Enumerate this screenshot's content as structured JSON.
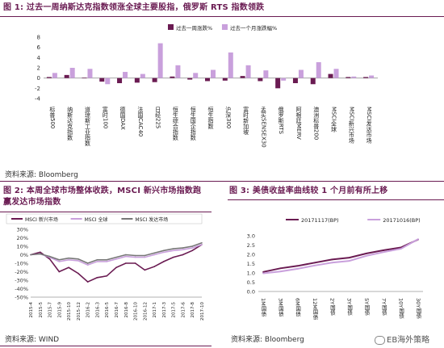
{
  "fig1": {
    "title": "图 1: 过去一周纳斯达克指数领涨全球主要股指，俄罗斯 RTS 指数领跌",
    "source": "资料来源: Bloomberg",
    "chart_data": {
      "type": "bar",
      "legend_position": "top",
      "categories": [
        "标普500",
        "纳斯达克指数",
        "道琼斯工业指数",
        "富时100",
        "德国DAX",
        "法国CAC40",
        "日经225",
        "恒生综合指数",
        "恒生国企指数",
        "恒生指数",
        "沪深300",
        "富时新加坡",
        "孟买SENSEX30",
        "俄罗斯RTS",
        "阿根廷MERV",
        "澳洲标普200",
        "MSCI全球",
        "MSCI新兴市场",
        "MSCI发达市场"
      ],
      "series": [
        {
          "name": "过去一周涨跌%",
          "color": "#6a1b52",
          "values": [
            0.2,
            0.6,
            0.1,
            -0.7,
            -1.0,
            -0.9,
            -0.8,
            0.3,
            -0.3,
            -0.6,
            -0.5,
            0.4,
            -0.6,
            -2.0,
            -1.0,
            -1.2,
            0.8,
            0.2,
            0.2
          ]
        },
        {
          "name": "过去一个月涨跌幅%",
          "color": "#c9a0dc",
          "values": [
            1.0,
            2.0,
            1.8,
            -1.2,
            1.2,
            0.8,
            6.8,
            2.5,
            1.0,
            1.6,
            5.0,
            2.5,
            1.5,
            -0.5,
            1.6,
            3.1,
            1.8,
            0.3,
            0.5
          ]
        }
      ],
      "ylim": [
        -4,
        8
      ],
      "yticks": [
        -4,
        -2,
        0,
        2,
        4,
        6,
        8
      ]
    }
  },
  "fig2": {
    "title_line1": "图 2: 本周全球市场整体收跌，MSCI 新兴市场指数跑",
    "title_line2": "赢发达市场指数",
    "source": "资料来源: WIND",
    "chart_data": {
      "type": "line",
      "legend_position": "top",
      "x": [
        "2015-4",
        "2015-5",
        "2015-7",
        "2015-9",
        "2015-10",
        "2015-12",
        "2016-2",
        "2016-3",
        "2016-5",
        "2016-7",
        "2016-8",
        "2016-10",
        "2016-12",
        "2017-1",
        "2017-3",
        "2017-5",
        "2017-6",
        "2017-8",
        "2017-10"
      ],
      "series": [
        {
          "name": "MSCI 新兴市场",
          "color": "#6a1b52",
          "values": [
            0,
            3,
            -5,
            -20,
            -15,
            -22,
            -32,
            -27,
            -25,
            -15,
            -10,
            -10,
            -18,
            -14,
            -8,
            -3,
            0,
            5,
            12
          ]
        },
        {
          "name": "MSCI 全球",
          "color": "#c9a0dc",
          "values": [
            0,
            1,
            -3,
            -8,
            -6,
            -7,
            -12,
            -8,
            -8,
            -5,
            -2,
            -3,
            -3,
            0,
            3,
            5,
            6,
            8,
            12
          ]
        },
        {
          "name": "MSCI 发达市场",
          "color": "#777777",
          "values": [
            0,
            1,
            -2,
            -6,
            -4,
            -5,
            -10,
            -6,
            -6,
            -3,
            0,
            -1,
            -1,
            2,
            5,
            7,
            8,
            10,
            14
          ]
        }
      ],
      "ylim": [
        -50,
        30
      ],
      "yticks": [
        "-50%",
        "-40%",
        "-30%",
        "-20%",
        "-10%",
        "0%",
        "10%",
        "20%",
        "30%"
      ]
    }
  },
  "fig3": {
    "title": "图 3: 美债收益率曲线较 1 个月前有所上移",
    "source": "资料来源: Bloomberg",
    "chart_data": {
      "type": "line",
      "legend_position": "top",
      "categories": [
        "1M国债",
        "3M国债",
        "6M国债",
        "12M国债",
        "2Y国债",
        "3Y国债",
        "5Y国债",
        "7Y国债",
        "10Y国债",
        "30Y国债"
      ],
      "series": [
        {
          "name": "20171117(BP)",
          "color": "#6a1b52",
          "values": [
            1.05,
            1.25,
            1.38,
            1.55,
            1.72,
            1.82,
            2.05,
            2.22,
            2.37,
            2.8
          ]
        },
        {
          "name": "20171016(BP)",
          "color": "#c9a0dc",
          "values": [
            0.98,
            1.08,
            1.22,
            1.4,
            1.55,
            1.65,
            1.92,
            2.12,
            2.3,
            2.82
          ]
        }
      ],
      "ylim": [
        0,
        3
      ],
      "yticks": [
        "0.0",
        "0.5",
        "1.0",
        "1.5",
        "2.0",
        "2.5",
        "3.0"
      ]
    }
  },
  "watermark": "EB海外策略"
}
